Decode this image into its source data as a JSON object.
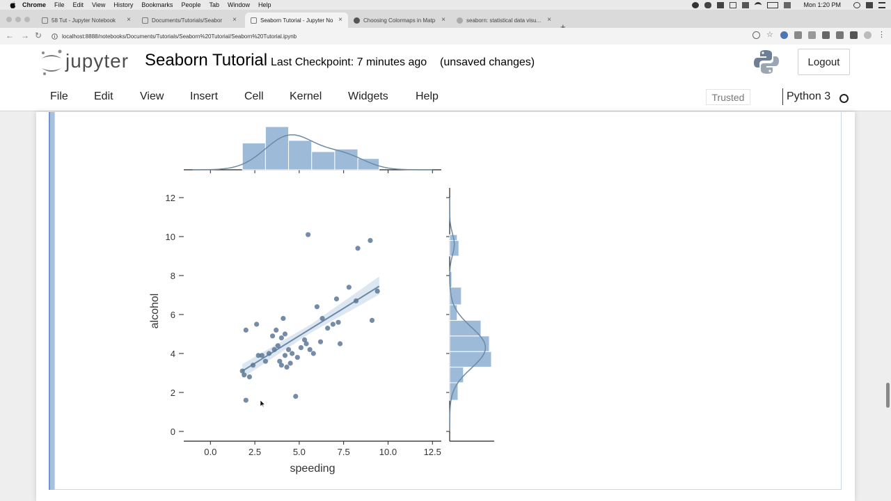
{
  "os_menubar": {
    "items": [
      "Chrome",
      "File",
      "Edit",
      "View",
      "History",
      "Bookmarks",
      "People",
      "Tab",
      "Window",
      "Help"
    ],
    "clock": "Mon 1:20 PM"
  },
  "browser": {
    "tabs": [
      {
        "title": "58 Tut - Jupyter Notebook",
        "active": false
      },
      {
        "title": "Documents/Tutorials/Seabor",
        "active": false
      },
      {
        "title": "Seaborn Tutorial - Jupyter No",
        "active": true
      },
      {
        "title": "Choosing Colormaps in Matp",
        "active": false
      },
      {
        "title": "seaborn: statistical data visu...",
        "active": false
      }
    ],
    "url": "localhost:8888/notebooks/Documents/Tutorials/Seaborn%20Tutorial/Seaborn%20Tutorial.ipynb"
  },
  "jupyter": {
    "logo_text": "jupyter",
    "notebook_name": "Seaborn Tutorial",
    "checkpoint": "Last Checkpoint: 7 minutes ago",
    "unsaved": "(unsaved changes)",
    "logout_label": "Logout",
    "menu": [
      "File",
      "Edit",
      "View",
      "Insert",
      "Cell",
      "Kernel",
      "Widgets",
      "Help"
    ],
    "trusted_label": "Trusted",
    "kernel_name": "Python 3"
  },
  "colors": {
    "bar_fill": "#9dbbd8",
    "point": "#5d7896",
    "line": "#6c89a6"
  },
  "chart_data": {
    "type": "scatter",
    "title": "",
    "xlabel": "speeding",
    "ylabel": "alcohol",
    "xlim": [
      -1.5,
      13
    ],
    "ylim": [
      -0.5,
      12.5
    ],
    "xticks": [
      0.0,
      2.5,
      5.0,
      7.5,
      10.0,
      12.5
    ],
    "xtick_labels": [
      "0.0",
      "2.5",
      "5.0",
      "7.5",
      "10.0",
      "12.5"
    ],
    "yticks": [
      0,
      2,
      4,
      6,
      8,
      10,
      12
    ],
    "ytick_labels": [
      "0",
      "2",
      "4",
      "6",
      "8",
      "10",
      "12"
    ],
    "regression_line": {
      "x": [
        1.8,
        9.5
      ],
      "y": [
        3.1,
        7.45
      ]
    },
    "points": [
      {
        "x": 1.8,
        "y": 3.1
      },
      {
        "x": 1.9,
        "y": 2.9
      },
      {
        "x": 2.0,
        "y": 5.2
      },
      {
        "x": 2.0,
        "y": 1.6
      },
      {
        "x": 2.2,
        "y": 2.8
      },
      {
        "x": 2.4,
        "y": 3.4
      },
      {
        "x": 2.6,
        "y": 5.5
      },
      {
        "x": 2.7,
        "y": 3.9
      },
      {
        "x": 2.9,
        "y": 3.9
      },
      {
        "x": 3.1,
        "y": 3.6
      },
      {
        "x": 3.3,
        "y": 4.0
      },
      {
        "x": 3.5,
        "y": 4.9
      },
      {
        "x": 3.6,
        "y": 4.2
      },
      {
        "x": 3.7,
        "y": 5.2
      },
      {
        "x": 3.8,
        "y": 4.4
      },
      {
        "x": 3.9,
        "y": 3.6
      },
      {
        "x": 4.0,
        "y": 4.8
      },
      {
        "x": 4.0,
        "y": 3.4
      },
      {
        "x": 4.1,
        "y": 5.8
      },
      {
        "x": 4.2,
        "y": 3.9
      },
      {
        "x": 4.2,
        "y": 5.0
      },
      {
        "x": 4.3,
        "y": 3.3
      },
      {
        "x": 4.4,
        "y": 4.2
      },
      {
        "x": 4.5,
        "y": 3.5
      },
      {
        "x": 4.6,
        "y": 4.0
      },
      {
        "x": 4.8,
        "y": 1.8
      },
      {
        "x": 4.9,
        "y": 3.8
      },
      {
        "x": 5.1,
        "y": 4.3
      },
      {
        "x": 5.3,
        "y": 4.7
      },
      {
        "x": 5.4,
        "y": 4.5
      },
      {
        "x": 5.5,
        "y": 10.1
      },
      {
        "x": 5.6,
        "y": 4.2
      },
      {
        "x": 5.8,
        "y": 4.0
      },
      {
        "x": 6.0,
        "y": 6.4
      },
      {
        "x": 6.2,
        "y": 4.6
      },
      {
        "x": 6.3,
        "y": 5.8
      },
      {
        "x": 6.6,
        "y": 5.3
      },
      {
        "x": 6.9,
        "y": 5.5
      },
      {
        "x": 7.1,
        "y": 6.8
      },
      {
        "x": 7.2,
        "y": 5.6
      },
      {
        "x": 7.3,
        "y": 4.5
      },
      {
        "x": 7.8,
        "y": 7.4
      },
      {
        "x": 8.2,
        "y": 6.7
      },
      {
        "x": 8.3,
        "y": 9.4
      },
      {
        "x": 9.0,
        "y": 9.8
      },
      {
        "x": 9.1,
        "y": 5.7
      },
      {
        "x": 9.4,
        "y": 7.2
      }
    ],
    "x_marginal_histogram": {
      "bin_edges": [
        1.8,
        3.1,
        4.4,
        5.7,
        7.0,
        8.3,
        9.5
      ],
      "relative_heights": [
        0.62,
        1.0,
        0.68,
        0.42,
        0.48,
        0.26
      ]
    },
    "y_marginal_histogram": {
      "bin_edges": [
        1.6,
        2.5,
        3.3,
        4.1,
        4.9,
        5.7,
        6.5,
        7.4,
        8.2,
        9.0,
        9.8,
        10.1
      ],
      "relative_widths": [
        0.2,
        0.33,
        1.0,
        0.95,
        0.75,
        0.18,
        0.28,
        0.05,
        0.0,
        0.22,
        0.18
      ]
    }
  }
}
